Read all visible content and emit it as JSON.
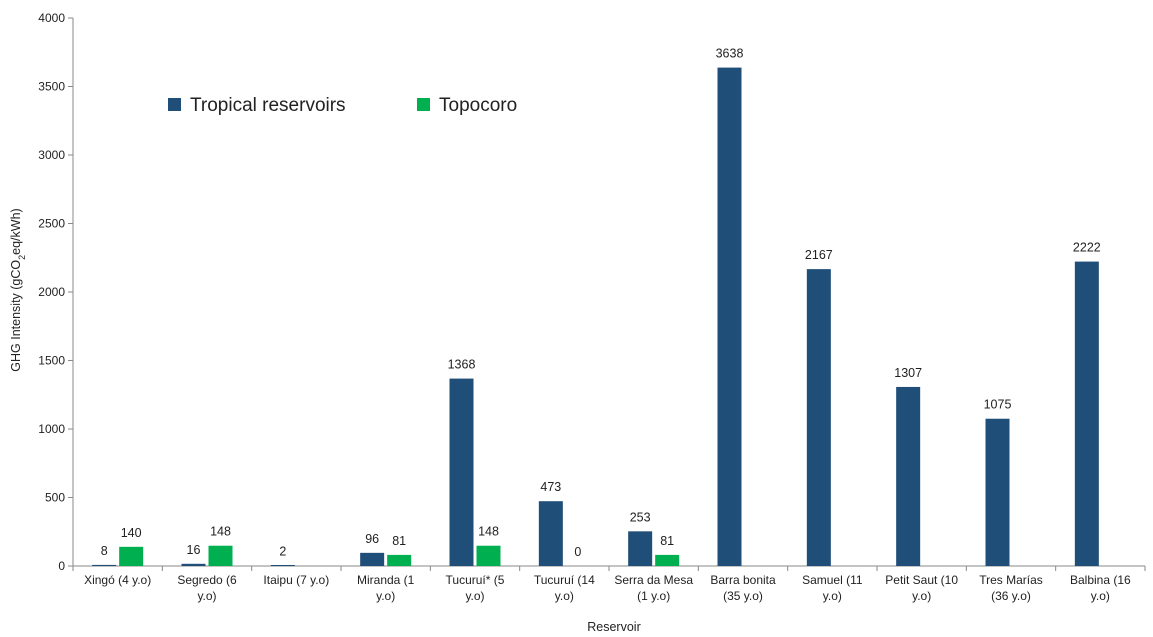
{
  "chart_data": {
    "type": "bar",
    "xlabel": "Reservoir",
    "ylabel_prefix": "GHG Intensity (gCO",
    "ylabel_sub": "2",
    "ylabel_suffix": "eq/kWh)",
    "ylim": [
      0,
      4000
    ],
    "yticks": [
      0,
      500,
      1000,
      1500,
      2000,
      2500,
      3000,
      3500,
      4000
    ],
    "grid": false,
    "legend_position": "top-left",
    "categories": [
      [
        "Xingó (4 y.o)"
      ],
      [
        "Segredo (6",
        "y.o)"
      ],
      [
        "Itaipu (7 y.o)"
      ],
      [
        "Miranda (1",
        "y.o)"
      ],
      [
        "Tucuruí* (5",
        "y.o)"
      ],
      [
        "Tucuruí (14",
        "y.o)"
      ],
      [
        "Serra da Mesa",
        "(1 y.o)"
      ],
      [
        "Barra bonita",
        "(35 y.o)"
      ],
      [
        "Samuel (11",
        "y.o)"
      ],
      [
        "Petit Saut (10",
        "y.o)"
      ],
      [
        "Tres Marías",
        "(36 y.o)"
      ],
      [
        "Balbina (16",
        "y.o)"
      ]
    ],
    "series": [
      {
        "name": "Tropical reservoirs",
        "color": "#1f4e79",
        "values": [
          8,
          16,
          2,
          96,
          1368,
          473,
          253,
          3638,
          2167,
          1307,
          1075,
          2222
        ]
      },
      {
        "name": "Topocoro",
        "color": "#00b050",
        "values": [
          140,
          148,
          null,
          81,
          148,
          0,
          81,
          null,
          null,
          null,
          null,
          null
        ]
      }
    ]
  }
}
